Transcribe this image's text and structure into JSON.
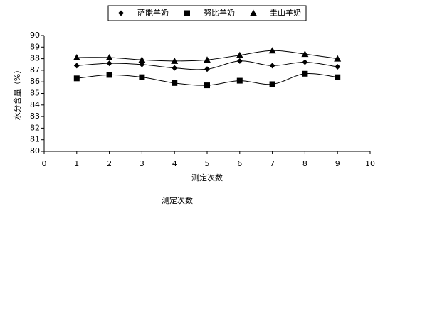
{
  "chart_data": {
    "type": "line",
    "y_label": "水分含量（%）",
    "x_label": "测定次数",
    "annotation": "测定次数",
    "x": [
      1,
      2,
      3,
      4,
      5,
      6,
      7,
      8,
      9
    ],
    "series": [
      {
        "name": "萨能羊奶",
        "color": "#000000",
        "marker": "diamond",
        "values": [
          87.4,
          87.6,
          87.5,
          87.2,
          87.1,
          87.8,
          87.4,
          87.7,
          87.3
        ]
      },
      {
        "name": "努比羊奶",
        "color": "#000000",
        "marker": "square",
        "values": [
          86.3,
          86.6,
          86.4,
          85.9,
          85.7,
          86.1,
          85.8,
          86.7,
          86.4
        ]
      },
      {
        "name": "圭山羊奶",
        "color": "#000000",
        "marker": "triangle",
        "values": [
          88.1,
          88.1,
          87.9,
          87.8,
          87.9,
          88.3,
          88.7,
          88.4,
          88.0
        ]
      }
    ],
    "xlim": [
      0,
      10
    ],
    "xticks": [
      0,
      1,
      2,
      3,
      4,
      5,
      6,
      7,
      8,
      9,
      10
    ],
    "ylim": [
      80,
      90
    ],
    "yticks": [
      80,
      81,
      82,
      83,
      84,
      85,
      86,
      87,
      88,
      89,
      90
    ],
    "grid": false,
    "legend": "top"
  }
}
